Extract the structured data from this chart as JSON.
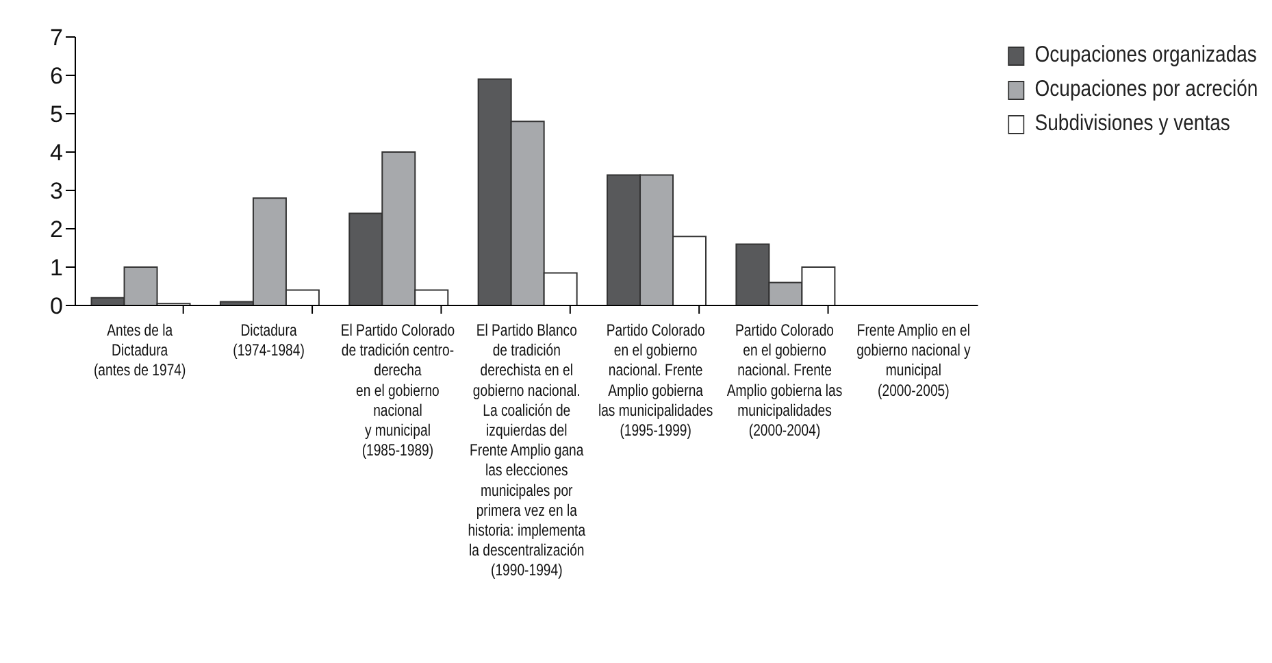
{
  "chart_data": {
    "type": "bar",
    "categories": [
      "Antes de la\nDictadura\n(antes de 1974)",
      "Dictadura\n(1974-1984)",
      "El Partido Colorado\nde tradición centro-\nderecha\nen el gobierno\nnacional\ny municipal\n(1985-1989)",
      "El Partido Blanco\nde tradición\nderechista en el\ngobierno nacional.\nLa coalición de\nizquierdas del\nFrente Amplio gana\nlas elecciones\nmunicipales por\nprimera vez en la\nhistoria: implementa\nla descentralización\n(1990-1994)",
      "Partido Colorado\nen el gobierno\nnacional. Frente\nAmplio gobierna\nlas municipalidades\n(1995-1999)",
      "Partido Colorado\nen el gobierno\nnacional. Frente\nAmplio gobierna las\nmunicipalidades\n(2000-2004)",
      "Frente Amplio en el\ngobierno nacional y\nmunicipal\n(2000-2005)"
    ],
    "series": [
      {
        "name": "Ocupaciones organizadas",
        "color": "#58595b",
        "values": [
          0.2,
          0.1,
          2.4,
          5.9,
          3.4,
          1.6,
          0
        ]
      },
      {
        "name": "Ocupaciones por acreción",
        "color": "#a7a9ac",
        "values": [
          1.0,
          2.8,
          4.0,
          4.8,
          3.4,
          0.6,
          0
        ]
      },
      {
        "name": "Subdivisiones y ventas",
        "color": "#ffffff",
        "values": [
          0.05,
          0.4,
          0.4,
          0.85,
          1.8,
          1.0,
          0
        ]
      }
    ],
    "ylim": [
      0,
      7
    ],
    "yticks": [
      0,
      1,
      2,
      3,
      4,
      5,
      6,
      7
    ],
    "grid": false,
    "legend": "top right"
  }
}
